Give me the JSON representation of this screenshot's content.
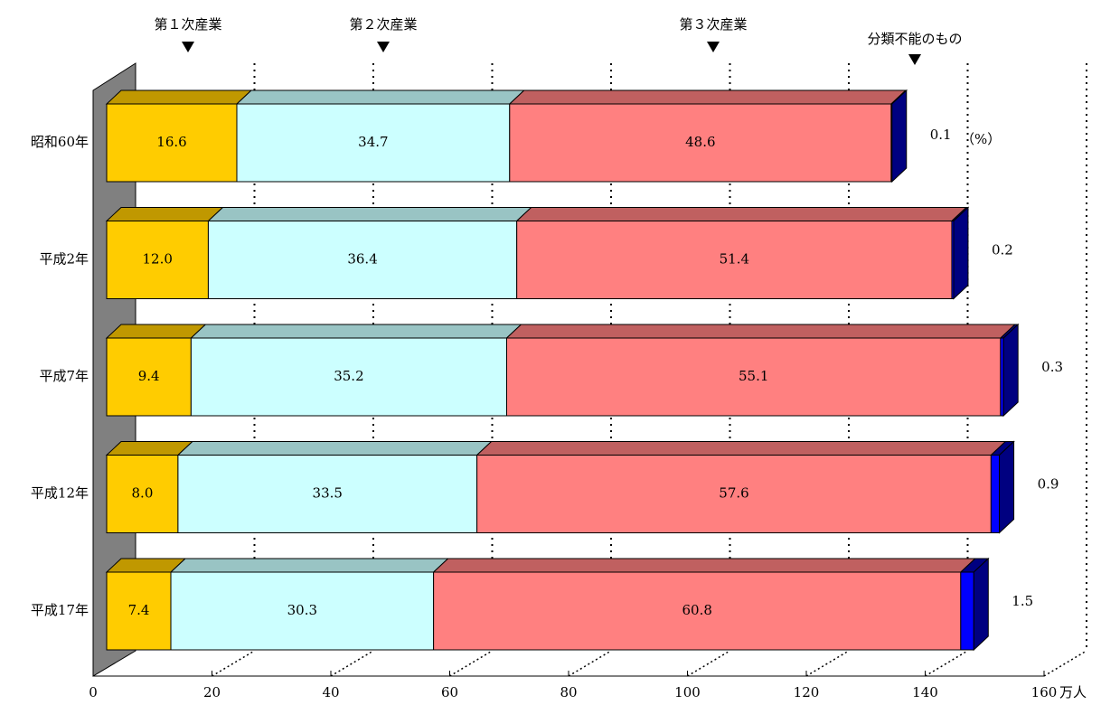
{
  "chart_data": {
    "type": "bar3d",
    "orientation": "horizontal",
    "stacked": true,
    "categories": [
      "昭和60年",
      "平成2年",
      "平成7年",
      "平成12年",
      "平成17年"
    ],
    "series": [
      {
        "name": "第１次産業",
        "color": "#ffcc00",
        "values": [
          21.9,
          17.1,
          14.2,
          12.0,
          10.8
        ],
        "percents": [
          16.6,
          12.0,
          9.4,
          8.0,
          7.4
        ],
        "value_labels": [
          "16.6",
          "12.0",
          "9.4",
          "8.0",
          "7.4"
        ]
      },
      {
        "name": "第２次産業",
        "color": "#ccffff",
        "values": [
          45.9,
          51.9,
          53.1,
          50.3,
          44.2
        ],
        "percents": [
          34.7,
          36.4,
          35.2,
          33.5,
          30.3
        ],
        "value_labels": [
          "34.7",
          "36.4",
          "35.2",
          "33.5",
          "30.3"
        ]
      },
      {
        "name": "第３次産業",
        "color": "#ff8080",
        "values": [
          64.2,
          73.2,
          83.1,
          86.5,
          88.7
        ],
        "percents": [
          48.6,
          51.4,
          55.1,
          57.6,
          60.8
        ],
        "value_labels": [
          "48.6",
          "51.4",
          "55.1",
          "57.6",
          "60.8"
        ]
      },
      {
        "name": "分類不能のもの",
        "color": "#0000ff",
        "values": [
          0.13,
          0.3,
          0.5,
          1.4,
          2.2
        ],
        "percents": [
          0.1,
          0.2,
          0.3,
          0.9,
          1.5
        ],
        "value_labels": [
          "0.1",
          "0.2",
          "0.3",
          "0.9",
          "1.5"
        ]
      }
    ],
    "annotation": "（%）",
    "x_label": "万人",
    "xlim": [
      0,
      160
    ],
    "xticks": [
      0,
      20,
      40,
      60,
      80,
      100,
      120,
      140,
      160
    ],
    "grid": true
  }
}
